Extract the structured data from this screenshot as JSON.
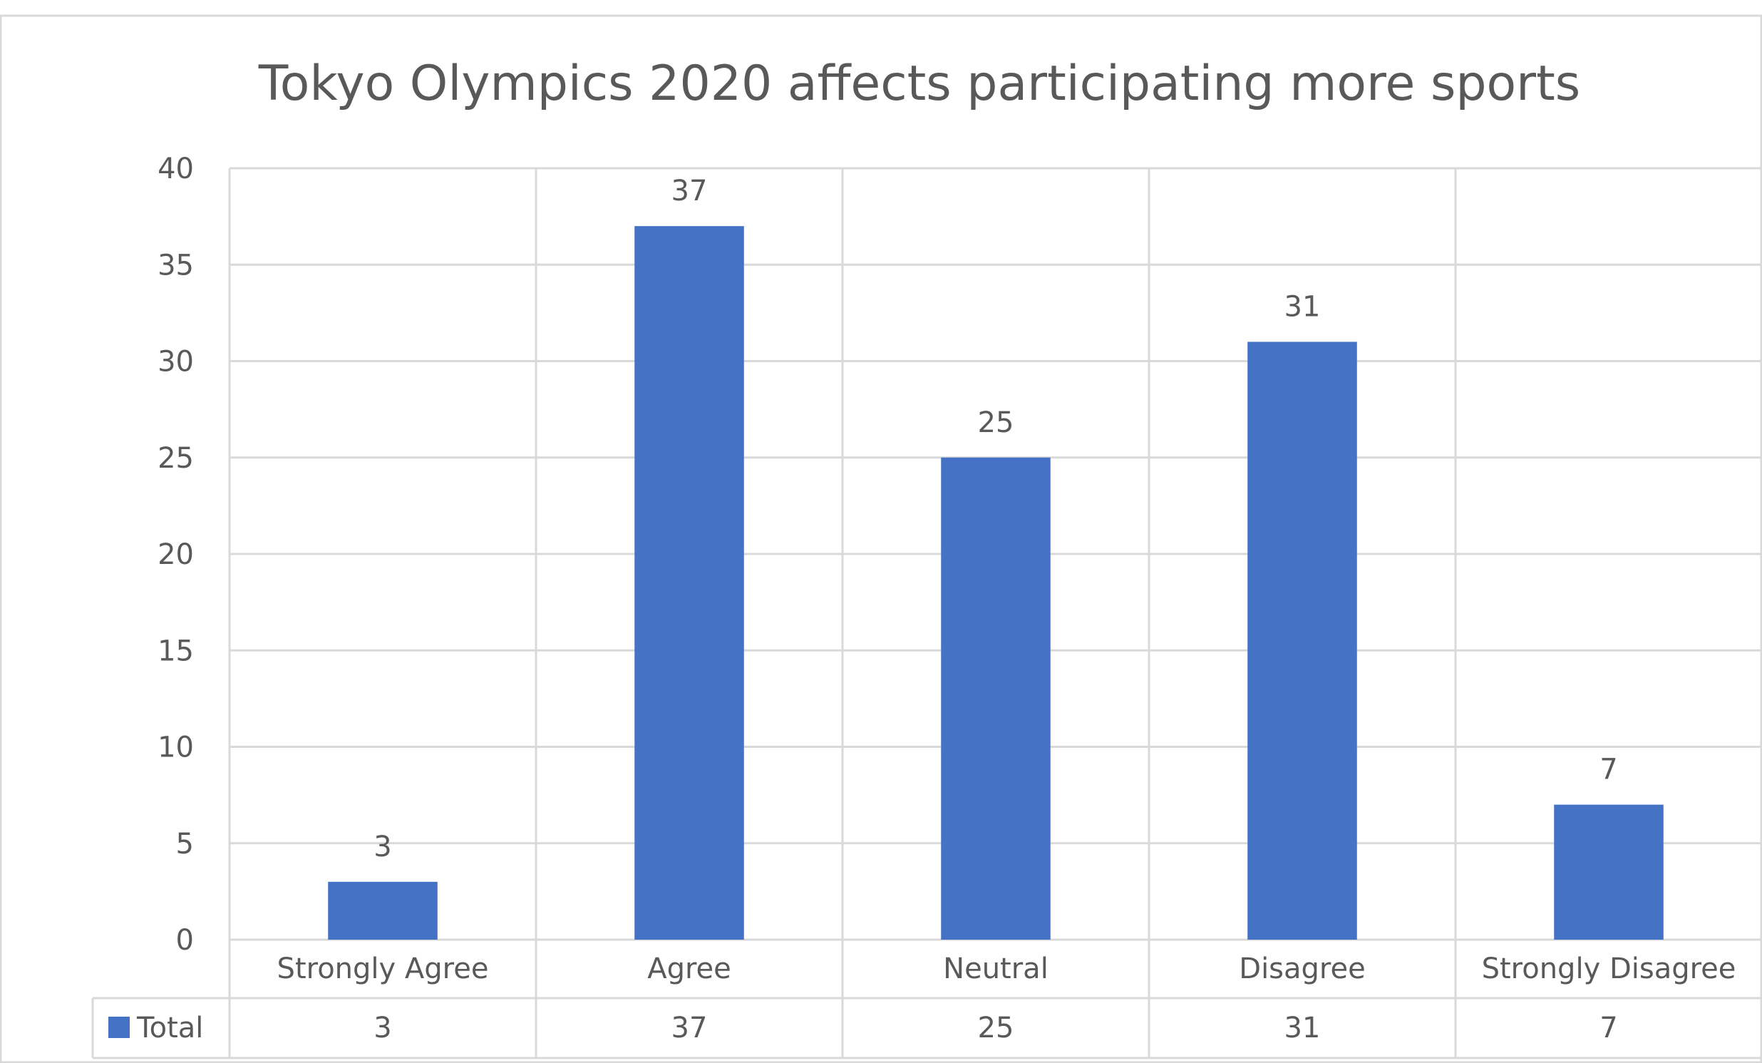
{
  "chart_data": {
    "type": "bar",
    "title": "Tokyo Olympics 2020 affects participating more sports",
    "categories": [
      "Strongly Agree",
      "Agree",
      "Neutral",
      "Disagree",
      "Strongly Disagree"
    ],
    "series": [
      {
        "name": "Total",
        "values": [
          3,
          37,
          25,
          31,
          7
        ],
        "color": "#4472C4"
      }
    ],
    "ylim": [
      0,
      40
    ],
    "yticks": [
      "0",
      "5",
      "10",
      "15",
      "20",
      "25",
      "30",
      "35",
      "40"
    ],
    "data_labels": [
      "3",
      "37",
      "25",
      "31",
      "7"
    ],
    "data_table": true,
    "grid": true,
    "colors": {
      "bar": "#4472C4",
      "grid": "#d9d9d9",
      "text": "#595959",
      "frame": "#d9d9d9"
    }
  }
}
